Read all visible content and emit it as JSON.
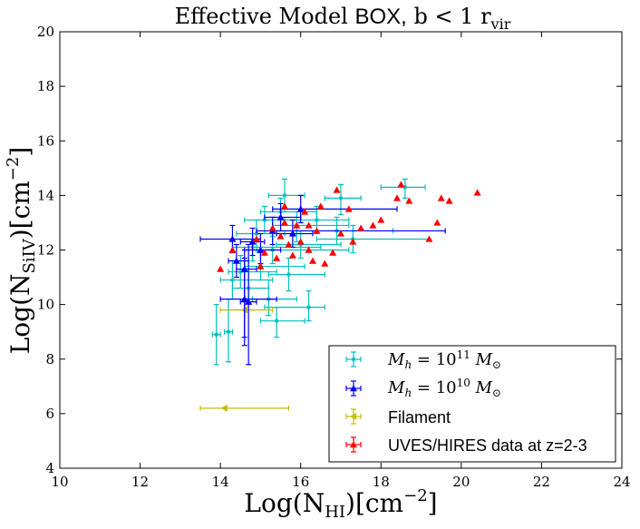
{
  "chart_data": {
    "type": "scatter",
    "title": {
      "part1": "Effective Model ",
      "part2": "BOX,",
      "part3": " b  <  1 r",
      "part3_sub": "vir"
    },
    "xlabel": {
      "main": "Log(N",
      "sub": "HI",
      "tail": ")[cm",
      "sup": "−2",
      "end": "]"
    },
    "ylabel": {
      "main": "Log(N",
      "sub": "SiIV",
      "tail": ")[cm",
      "sup": "−2",
      "end": "]"
    },
    "xlim": [
      10,
      24
    ],
    "ylim": [
      4,
      20
    ],
    "xticks": [
      10,
      12,
      14,
      16,
      18,
      20,
      22,
      24
    ],
    "yticks": [
      4,
      6,
      8,
      10,
      12,
      14,
      16,
      18,
      20
    ],
    "legend_position": "lower-right",
    "colors": {
      "cyan": "#00bfbf",
      "blue": "#0000ff",
      "yellow": "#bfbf00",
      "red": "#ff0000"
    },
    "series": [
      {
        "name": "M_h = 10^11 M_sun",
        "legend": {
          "a": "M",
          "a_sub": "h",
          "b": " = 10",
          "b_sup": "11",
          "c": " M",
          "c_sub": "⊙"
        },
        "color": "#00bfbf",
        "marker": "circle",
        "points": [
          {
            "x": 13.9,
            "y": 8.9,
            "xlo": 13.8,
            "xhi": 14.0,
            "ylo": 7.8,
            "yhi": 10.0
          },
          {
            "x": 14.2,
            "y": 9.0,
            "xlo": 14.1,
            "xhi": 14.3,
            "ylo": 7.9,
            "yhi": 10.2
          },
          {
            "x": 14.3,
            "y": 10.9,
            "xlo": 14.0,
            "xhi": 15.3,
            "ylo": 10.2,
            "yhi": 11.6
          },
          {
            "x": 14.5,
            "y": 11.2,
            "xlo": 14.2,
            "xhi": 15.4,
            "ylo": 10.6,
            "yhi": 11.8
          },
          {
            "x": 14.7,
            "y": 10.6,
            "xlo": 14.3,
            "xhi": 15.2,
            "ylo": 9.8,
            "yhi": 11.3
          },
          {
            "x": 14.9,
            "y": 12.6,
            "xlo": 14.4,
            "xhi": 15.6,
            "ylo": 12.1,
            "yhi": 13.1
          },
          {
            "x": 15.0,
            "y": 11.4,
            "xlo": 14.6,
            "xhi": 16.1,
            "ylo": 10.9,
            "yhi": 11.9
          },
          {
            "x": 15.1,
            "y": 13.1,
            "xlo": 14.6,
            "xhi": 16.0,
            "ylo": 12.6,
            "yhi": 13.6
          },
          {
            "x": 15.2,
            "y": 10.2,
            "xlo": 14.8,
            "xhi": 15.9,
            "ylo": 9.6,
            "yhi": 10.9
          },
          {
            "x": 15.3,
            "y": 12.0,
            "xlo": 14.9,
            "xhi": 17.2,
            "ylo": 11.5,
            "yhi": 12.5
          },
          {
            "x": 15.4,
            "y": 9.4,
            "xlo": 15.0,
            "xhi": 16.1,
            "ylo": 8.8,
            "yhi": 9.9
          },
          {
            "x": 15.5,
            "y": 13.4,
            "xlo": 15.0,
            "xhi": 16.4,
            "ylo": 12.9,
            "yhi": 13.9
          },
          {
            "x": 15.7,
            "y": 11.1,
            "xlo": 15.2,
            "xhi": 16.6,
            "ylo": 10.5,
            "yhi": 11.7
          },
          {
            "x": 15.9,
            "y": 12.9,
            "xlo": 15.3,
            "xhi": 17.2,
            "ylo": 12.3,
            "yhi": 13.4
          },
          {
            "x": 16.0,
            "y": 12.2,
            "xlo": 15.4,
            "xhi": 17.0,
            "ylo": 11.7,
            "yhi": 12.7
          },
          {
            "x": 16.2,
            "y": 9.9,
            "xlo": 15.1,
            "xhi": 16.6,
            "ylo": 9.4,
            "yhi": 10.5
          },
          {
            "x": 16.4,
            "y": 13.1,
            "xlo": 15.6,
            "xhi": 17.2,
            "ylo": 12.6,
            "yhi": 13.6
          },
          {
            "x": 16.9,
            "y": 12.7,
            "xlo": 15.9,
            "xhi": 18.3,
            "ylo": 12.2,
            "yhi": 13.2
          },
          {
            "x": 17.0,
            "y": 13.9,
            "xlo": 16.6,
            "xhi": 17.5,
            "ylo": 13.3,
            "yhi": 14.4
          },
          {
            "x": 17.3,
            "y": 12.4,
            "xlo": 16.4,
            "xhi": 19.2,
            "ylo": 11.9,
            "yhi": 12.9
          },
          {
            "x": 18.6,
            "y": 14.3,
            "xlo": 18.0,
            "xhi": 19.1,
            "ylo": 13.9,
            "yhi": 14.6
          },
          {
            "x": 14.8,
            "y": 12.1,
            "xlo": 14.3,
            "xhi": 16.5,
            "ylo": 11.6,
            "yhi": 12.6
          },
          {
            "x": 15.6,
            "y": 14.0,
            "xlo": 15.2,
            "xhi": 16.1,
            "ylo": 13.4,
            "yhi": 14.6
          }
        ]
      },
      {
        "name": "M_h = 10^10 M_sun",
        "legend": {
          "a": "M",
          "a_sub": "h",
          "b": " = 10",
          "b_sup": "10",
          "c": " M",
          "c_sub": "⊙"
        },
        "color": "#0000ff",
        "marker": "triangle",
        "points": [
          {
            "x": 14.3,
            "y": 12.4,
            "xlo": 13.5,
            "xhi": 15.0,
            "ylo": 11.9,
            "yhi": 12.9
          },
          {
            "x": 14.4,
            "y": 11.6,
            "xlo": 14.2,
            "xhi": 14.7,
            "ylo": 11.0,
            "yhi": 12.2
          },
          {
            "x": 14.6,
            "y": 10.2,
            "xlo": 14.0,
            "xhi": 15.4,
            "ylo": 8.8,
            "yhi": 11.7
          },
          {
            "x": 14.6,
            "y": 11.3,
            "xlo": 14.4,
            "xhi": 14.9,
            "ylo": 8.5,
            "yhi": 12.0
          },
          {
            "x": 14.7,
            "y": 10.1,
            "xlo": 14.5,
            "xhi": 14.9,
            "ylo": 7.8,
            "yhi": 12.2
          },
          {
            "x": 14.8,
            "y": 12.3,
            "xlo": 14.5,
            "xhi": 15.1,
            "ylo": 11.8,
            "yhi": 12.8
          },
          {
            "x": 15.0,
            "y": 12.0,
            "xlo": 14.6,
            "xhi": 15.5,
            "ylo": 11.5,
            "yhi": 12.6
          },
          {
            "x": 15.3,
            "y": 12.7,
            "xlo": 14.9,
            "xhi": 19.6,
            "ylo": 12.2,
            "yhi": 13.2
          },
          {
            "x": 15.5,
            "y": 13.2,
            "xlo": 15.1,
            "xhi": 16.0,
            "ylo": 12.7,
            "yhi": 13.7
          },
          {
            "x": 16.0,
            "y": 13.5,
            "xlo": 15.3,
            "xhi": 18.4,
            "ylo": 13.0,
            "yhi": 14.0
          },
          {
            "x": 15.8,
            "y": 12.6,
            "xlo": 15.4,
            "xhi": 16.3,
            "ylo": 12.1,
            "yhi": 13.1
          }
        ]
      },
      {
        "name": "Filament",
        "legend": {
          "label": "Filament"
        },
        "color": "#bfbf00",
        "marker": "triangle-left",
        "points": [
          {
            "x": 14.1,
            "y": 6.2,
            "xlo": 13.5,
            "xhi": 15.7,
            "ylo": 6.2,
            "yhi": 6.2
          },
          {
            "x": 14.6,
            "y": 9.8,
            "xlo": 14.0,
            "xhi": 15.3,
            "ylo": 9.8,
            "yhi": 9.8
          }
        ]
      },
      {
        "name": "UVES/HIRES data at z=2-3",
        "legend": {
          "label": "UVES/HIRES data at z=2-3"
        },
        "color": "#ff0000",
        "marker": "triangle",
        "points": [
          {
            "x": 14.0,
            "y": 11.3
          },
          {
            "x": 14.3,
            "y": 12.0
          },
          {
            "x": 14.9,
            "y": 12.4
          },
          {
            "x": 15.1,
            "y": 11.9
          },
          {
            "x": 15.3,
            "y": 12.8
          },
          {
            "x": 15.4,
            "y": 11.7
          },
          {
            "x": 15.5,
            "y": 12.5
          },
          {
            "x": 15.6,
            "y": 13.0
          },
          {
            "x": 15.7,
            "y": 12.2
          },
          {
            "x": 15.8,
            "y": 11.8
          },
          {
            "x": 15.9,
            "y": 12.9
          },
          {
            "x": 16.0,
            "y": 12.3
          },
          {
            "x": 16.1,
            "y": 13.4
          },
          {
            "x": 16.2,
            "y": 12.0
          },
          {
            "x": 16.3,
            "y": 11.6
          },
          {
            "x": 16.4,
            "y": 12.7
          },
          {
            "x": 16.5,
            "y": 13.6
          },
          {
            "x": 16.6,
            "y": 11.5
          },
          {
            "x": 16.8,
            "y": 11.9
          },
          {
            "x": 16.9,
            "y": 14.2
          },
          {
            "x": 17.0,
            "y": 12.6
          },
          {
            "x": 17.2,
            "y": 13.5
          },
          {
            "x": 17.3,
            "y": 12.3
          },
          {
            "x": 17.5,
            "y": 12.8
          },
          {
            "x": 17.8,
            "y": 12.9
          },
          {
            "x": 18.0,
            "y": 13.1
          },
          {
            "x": 18.4,
            "y": 13.9
          },
          {
            "x": 18.5,
            "y": 14.4
          },
          {
            "x": 18.7,
            "y": 13.8
          },
          {
            "x": 19.2,
            "y": 12.4
          },
          {
            "x": 19.4,
            "y": 13.0
          },
          {
            "x": 19.5,
            "y": 13.9
          },
          {
            "x": 19.7,
            "y": 13.8
          },
          {
            "x": 20.4,
            "y": 14.1
          },
          {
            "x": 15.0,
            "y": 11.4
          },
          {
            "x": 16.2,
            "y": 12.9
          },
          {
            "x": 15.6,
            "y": 13.6
          }
        ]
      }
    ]
  }
}
